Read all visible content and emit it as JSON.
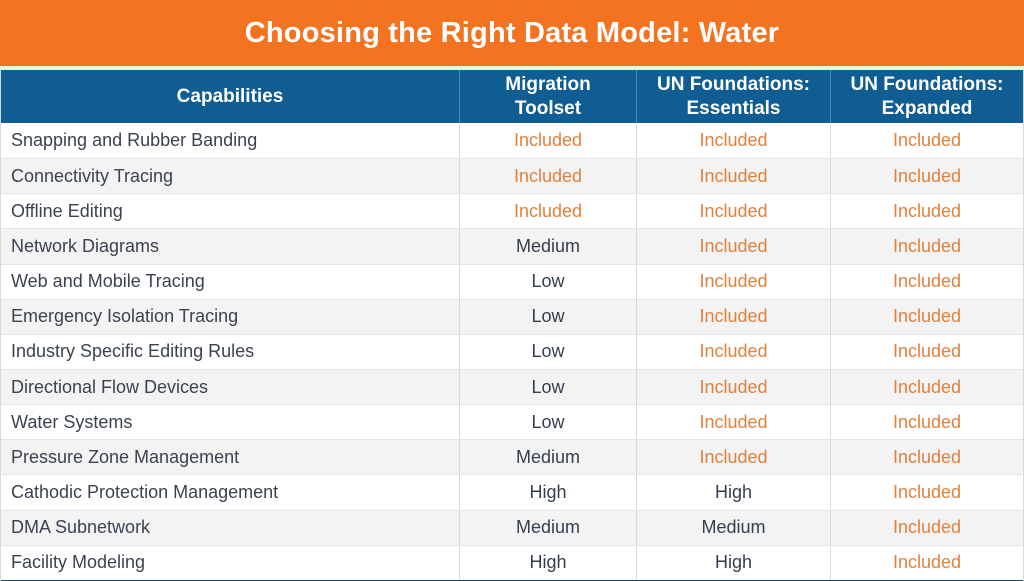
{
  "banner": {
    "title": "Choosing the Right Data Model: Water"
  },
  "colors": {
    "banner_orange": "#F37321",
    "header_blue": "#0F5D93",
    "included_orange": "#E0813C",
    "text_dark": "#3B4350",
    "stripe_gray": "#F3F3F4",
    "bottom_border": "#24465F"
  },
  "table": {
    "columns": [
      "Capabilities",
      "Migration\nToolset",
      "UN Foundations:\nEssentials",
      "UN Foundations:\nExpanded"
    ],
    "rows": [
      {
        "capability": "Snapping and Rubber Banding",
        "values": [
          "Included",
          "Included",
          "Included"
        ]
      },
      {
        "capability": "Connectivity Tracing",
        "values": [
          "Included",
          "Included",
          "Included"
        ]
      },
      {
        "capability": "Offline Editing",
        "values": [
          "Included",
          "Included",
          "Included"
        ]
      },
      {
        "capability": "Network Diagrams",
        "values": [
          "Medium",
          "Included",
          "Included"
        ]
      },
      {
        "capability": "Web and Mobile Tracing",
        "values": [
          "Low",
          "Included",
          "Included"
        ]
      },
      {
        "capability": "Emergency Isolation Tracing",
        "values": [
          "Low",
          "Included",
          "Included"
        ]
      },
      {
        "capability": "Industry Specific Editing Rules",
        "values": [
          "Low",
          "Included",
          "Included"
        ]
      },
      {
        "capability": "Directional Flow Devices",
        "values": [
          "Low",
          "Included",
          "Included"
        ]
      },
      {
        "capability": "Water Systems",
        "values": [
          "Low",
          "Included",
          "Included"
        ]
      },
      {
        "capability": "Pressure Zone Management",
        "values": [
          "Medium",
          "Included",
          "Included"
        ]
      },
      {
        "capability": "Cathodic Protection Management",
        "values": [
          "High",
          "High",
          "Included"
        ]
      },
      {
        "capability": "DMA Subnetwork",
        "values": [
          "Medium",
          "Medium",
          "Included"
        ]
      },
      {
        "capability": "Facility Modeling",
        "values": [
          "High",
          "High",
          "Included"
        ]
      }
    ]
  }
}
